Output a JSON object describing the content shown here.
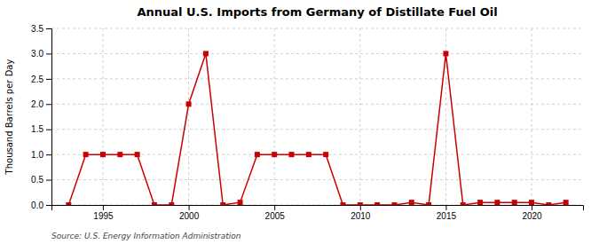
{
  "chart_data": {
    "type": "line",
    "title": "Annual U.S. Imports from Germany of Distillate Fuel Oil",
    "ylabel": "Thousand Barrels per Day",
    "source": "Source: U.S. Energy Information Administration",
    "x": [
      1993,
      1994,
      1995,
      1996,
      1997,
      1998,
      1999,
      2000,
      2001,
      2002,
      2003,
      2004,
      2005,
      2006,
      2007,
      2008,
      2009,
      2010,
      2011,
      2012,
      2013,
      2014,
      2015,
      2016,
      2017,
      2018,
      2019,
      2020,
      2021,
      2022
    ],
    "values": [
      0,
      1.0,
      1.0,
      1.0,
      1.0,
      0,
      0,
      2.0,
      3.0,
      0,
      0.05,
      1.0,
      1.0,
      1.0,
      1.0,
      1.0,
      0,
      0,
      0,
      0,
      0.05,
      0,
      3.0,
      0,
      0.05,
      0.05,
      0.05,
      0.05,
      0,
      0.05
    ],
    "color": "#cc0000",
    "marker": "square",
    "line_style": "solid",
    "grid": true,
    "xlim": [
      1992,
      2023
    ],
    "xticks": [
      1995,
      2000,
      2005,
      2010,
      2015,
      2020
    ],
    "ylim": [
      0,
      3.5
    ],
    "yticks": [
      {
        "value": 0,
        "label": "0.0"
      },
      0.5,
      {
        "value": 1.0,
        "label": "1.0"
      },
      1.5,
      {
        "value": 2.0,
        "label": "2.0"
      },
      2.5,
      {
        "value": 3.0,
        "label": "3.0"
      },
      3.5
    ]
  }
}
